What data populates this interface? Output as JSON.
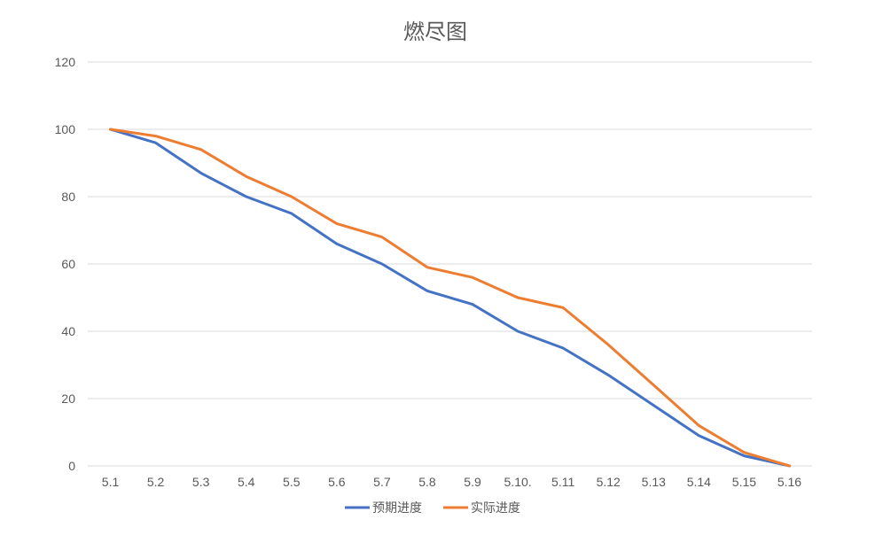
{
  "chart_data": {
    "type": "line",
    "title": "燃尽图",
    "categories": [
      "5.1",
      "5.2",
      "5.3",
      "5.4",
      "5.5",
      "5.6",
      "5.7",
      "5.8",
      "5.9",
      "5.10.",
      "5.11",
      "5.12",
      "5.13",
      "5.14",
      "5.15",
      "5.16"
    ],
    "ylim": [
      0,
      120
    ],
    "yticks": [
      0,
      20,
      40,
      60,
      80,
      100,
      120
    ],
    "grid": true,
    "legend_position": "bottom",
    "series": [
      {
        "name": "预期进度",
        "color": "#4472c4",
        "values": [
          100,
          96,
          87,
          80,
          75,
          66,
          60,
          52,
          48,
          40,
          35,
          27,
          18,
          9,
          3,
          0
        ]
      },
      {
        "name": "实际进度",
        "color": "#ed7d31",
        "values": [
          100,
          98,
          94,
          86,
          80,
          72,
          68,
          59,
          56,
          50,
          47,
          36,
          24,
          12,
          4,
          0
        ]
      }
    ]
  }
}
